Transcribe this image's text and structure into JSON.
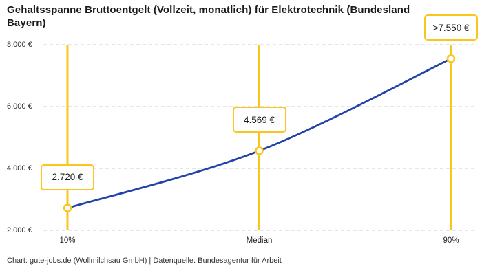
{
  "title": "Gehaltsspanne Bruttoentgelt (Vollzeit, monatlich) für Elektrotechnik (Bundesland Bayern)",
  "footer": "Chart: gute-jobs.de (Wollmilchsau GmbH) | Datenquelle: Bundesagentur für Arbeit",
  "colors": {
    "accent_yellow": "#FBC51D",
    "line_blue": "#2243A9",
    "grid_gray": "#CCCCCC",
    "text_dark": "#1A1A1A",
    "point_fill": "#FFFFFF"
  },
  "chart_data": {
    "type": "line",
    "title": "Gehaltsspanne Bruttoentgelt (Vollzeit, monatlich) für Elektrotechnik (Bundesland Bayern)",
    "categories": [
      "10%",
      "Median",
      "90%"
    ],
    "values": [
      2720,
      4569,
      7550
    ],
    "point_labels": [
      "2.720 €",
      "4.569 €",
      ">7.550 €"
    ],
    "y_ticks": [
      2000,
      4000,
      6000,
      8000
    ],
    "y_tick_labels": [
      "2.000 €",
      "4.000 €",
      "6.000 €",
      "8.000 €"
    ],
    "ylim": [
      2000,
      8000
    ],
    "xlabel": "",
    "ylabel": "",
    "grid": "horizontal-dashed",
    "legend": "none",
    "marker_rulers": "vertical-yellow-lines-at-each-category"
  }
}
